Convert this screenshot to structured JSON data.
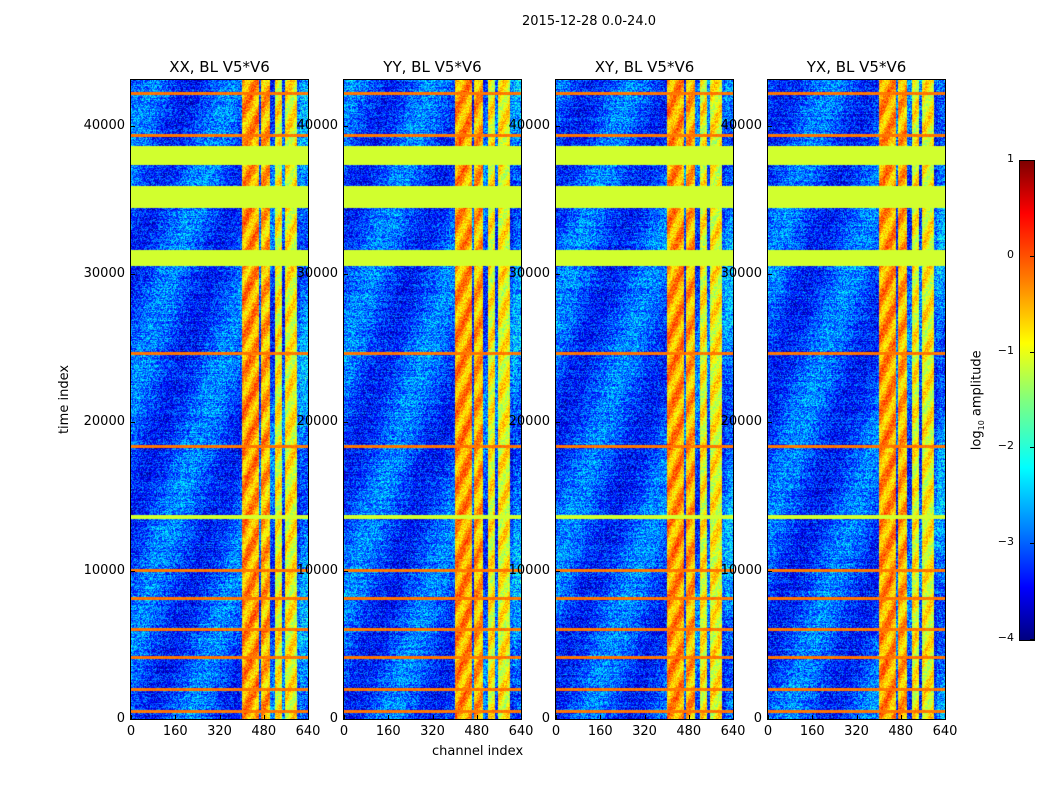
{
  "chart_data": {
    "type": "heatmap",
    "title": "2015-12-28 0.0-24.0",
    "xlabel": "channel index",
    "ylabel": "time index",
    "xlim": [
      0,
      640
    ],
    "ylim": [
      0,
      43100
    ],
    "xticks": [
      0,
      160,
      320,
      480,
      640
    ],
    "yticks": [
      0,
      10000,
      20000,
      30000,
      40000
    ],
    "panels": [
      {
        "title": "XX, BL V5*V6"
      },
      {
        "title": "YY, BL V5*V6"
      },
      {
        "title": "XY, BL V5*V6"
      },
      {
        "title": "YX, BL V5*V6"
      }
    ],
    "colorbar": {
      "label": "log10 amplitude",
      "label_main": "log",
      "label_sub": "10",
      "label_rest": " amplitude",
      "range": [
        -4,
        1
      ],
      "ticks": [
        1,
        0,
        -1,
        -2,
        -3,
        -4
      ],
      "colormap": "jet"
    },
    "background_level": -3.0,
    "flagged_time_ranges": [
      [
        37400,
        38650
      ],
      [
        34500,
        36000
      ],
      [
        30600,
        31700
      ],
      [
        13500,
        13800
      ]
    ],
    "flagged_level": -1.1,
    "rfi_time_lines": [
      42230,
      39400,
      24660,
      18380,
      10070,
      8180,
      6080,
      4190,
      2030,
      540
    ],
    "rfi_line_level": -0.2,
    "rfi_channel_bands": [
      {
        "range": [
          400,
          460
        ],
        "level": -0.4
      },
      {
        "range": [
          468,
          500
        ],
        "level": -0.5
      },
      {
        "range": [
          520,
          545
        ],
        "level": -0.9
      },
      {
        "range": [
          555,
          600
        ],
        "level": -0.9
      }
    ]
  }
}
